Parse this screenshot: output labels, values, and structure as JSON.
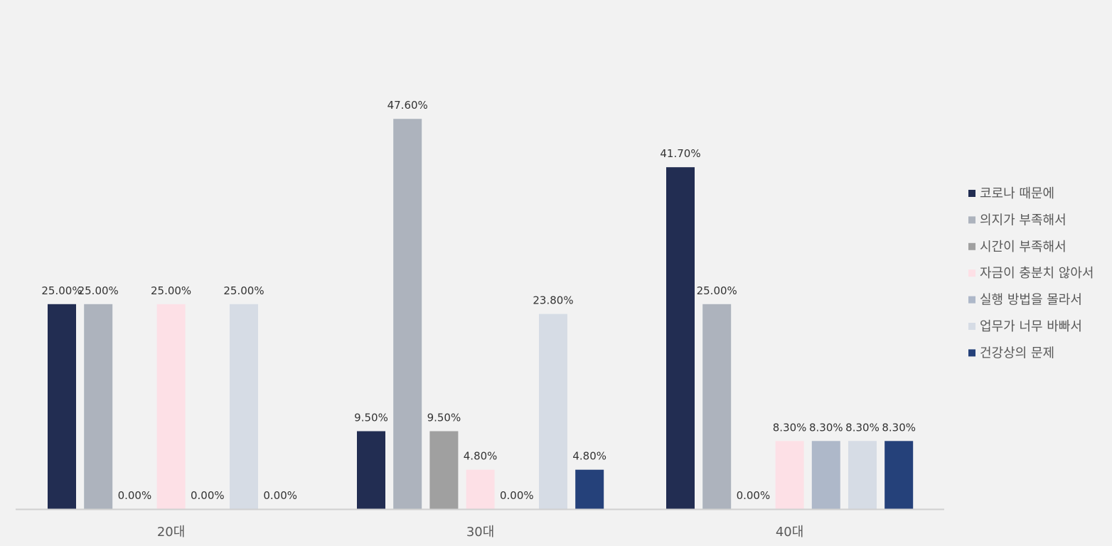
{
  "chart_data": {
    "type": "bar",
    "title": "",
    "xlabel": "",
    "ylabel": "",
    "categories": [
      "20대",
      "30대",
      "40대"
    ],
    "ylim": [
      0,
      52
    ],
    "grid": false,
    "legend_position": "right",
    "series": [
      {
        "name": "코로나 때문에",
        "color": "#222d52",
        "values": [
          25.0,
          9.5,
          41.7
        ],
        "labels": [
          "25.00%",
          "9.50%",
          "41.70%"
        ]
      },
      {
        "name": "의지가 부족해서",
        "color": "#adb3bd",
        "values": [
          25.0,
          47.6,
          25.0
        ],
        "labels": [
          "25.00%",
          "47.60%",
          "25.00%"
        ]
      },
      {
        "name": "시간이 부족해서",
        "color": "#a0a0a0",
        "values": [
          0.0,
          9.5,
          0.0
        ],
        "labels": [
          "0.00%",
          "9.50%",
          "0.00%"
        ]
      },
      {
        "name": "자금이 충분치 않아서",
        "color": "#fde0e6",
        "values": [
          25.0,
          4.8,
          8.3
        ],
        "labels": [
          "25.00%",
          "4.80%",
          "8.30%"
        ]
      },
      {
        "name": "실행 방법을 몰라서",
        "color": "#aeb8c9",
        "values": [
          0.0,
          0.0,
          8.3
        ],
        "labels": [
          "0.00%",
          "0.00%",
          "8.30%"
        ]
      },
      {
        "name": "업무가 너무 바빠서",
        "color": "#d6dce5",
        "values": [
          25.0,
          23.8,
          8.3
        ],
        "labels": [
          "25.00%",
          "23.80%",
          "8.30%"
        ]
      },
      {
        "name": "건강상의 문제",
        "color": "#25417a",
        "values": [
          0.0,
          4.8,
          8.3
        ],
        "labels": [
          "0.00%",
          "4.80%",
          "8.30%"
        ]
      }
    ]
  }
}
